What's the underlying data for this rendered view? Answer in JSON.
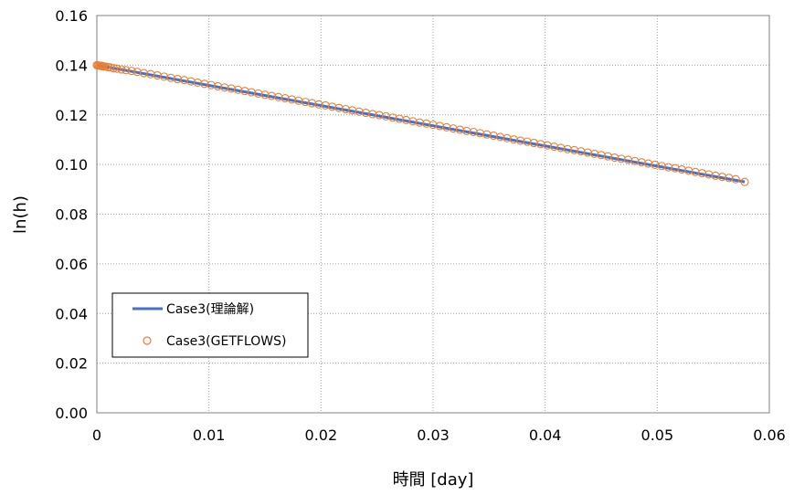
{
  "chart_data": {
    "type": "line",
    "xlabel": "時間 [day]",
    "ylabel": "ln(h)",
    "xlim": [
      0,
      0.06
    ],
    "ylim": [
      0,
      0.16
    ],
    "x_ticks": [
      "0",
      "0.01",
      "0.02",
      "0.03",
      "0.04",
      "0.05",
      "0.06"
    ],
    "y_ticks": [
      "0.00",
      "0.02",
      "0.04",
      "0.06",
      "0.08",
      "0.10",
      "0.12",
      "0.14",
      "0.16"
    ],
    "grid": true,
    "legend_position": "lower-left",
    "series": [
      {
        "name": "Case3(理論解)",
        "style": "line",
        "color": "#4472C4",
        "x": [
          0.0,
          0.0578
        ],
        "y": [
          0.14,
          0.093
        ]
      },
      {
        "name": "Case3(GETFLOWS)",
        "style": "markers",
        "marker": "open-circle",
        "color": "#ED7D31",
        "x": [
          0.0,
          0.0001,
          0.0002,
          0.0003,
          0.0004,
          0.0005,
          0.0006,
          0.0008,
          0.001,
          0.0012,
          0.0015,
          0.0018,
          0.0022,
          0.0026,
          0.0031,
          0.0036,
          0.0042,
          0.0048,
          0.0054,
          0.006,
          0.0066,
          0.0072,
          0.0078,
          0.0084,
          0.009,
          0.0096,
          0.0102,
          0.0108,
          0.0114,
          0.012,
          0.0126,
          0.0132,
          0.0138,
          0.0144,
          0.015,
          0.0156,
          0.0162,
          0.0168,
          0.0174,
          0.018,
          0.0186,
          0.0192,
          0.0198,
          0.0204,
          0.021,
          0.0216,
          0.0222,
          0.0228,
          0.0234,
          0.024,
          0.0246,
          0.0252,
          0.0258,
          0.0264,
          0.027,
          0.0276,
          0.0282,
          0.0288,
          0.0294,
          0.03,
          0.0306,
          0.0312,
          0.0318,
          0.0324,
          0.033,
          0.0336,
          0.0342,
          0.0348,
          0.0354,
          0.036,
          0.0366,
          0.0372,
          0.0378,
          0.0384,
          0.039,
          0.0396,
          0.0402,
          0.0408,
          0.0414,
          0.042,
          0.0426,
          0.0432,
          0.0438,
          0.0444,
          0.045,
          0.0456,
          0.0462,
          0.0468,
          0.0474,
          0.048,
          0.0486,
          0.0492,
          0.0498,
          0.0504,
          0.051,
          0.0516,
          0.0522,
          0.0528,
          0.0534,
          0.054,
          0.0546,
          0.0552,
          0.0558,
          0.0564,
          0.057,
          0.0578
        ],
        "y": [
          0.14,
          0.1399,
          0.1398,
          0.1398,
          0.1397,
          0.1396,
          0.1395,
          0.1394,
          0.1392,
          0.1391,
          0.1388,
          0.1386,
          0.1383,
          0.138,
          0.1377,
          0.1373,
          0.1368,
          0.1364,
          0.1359,
          0.1354,
          0.1349,
          0.1344,
          0.134,
          0.1335,
          0.133,
          0.1325,
          0.132,
          0.1315,
          0.131,
          0.1306,
          0.1301,
          0.1296,
          0.1291,
          0.1286,
          0.1281,
          0.1276,
          0.1272,
          0.1267,
          0.1262,
          0.1257,
          0.1252,
          0.1247,
          0.1242,
          0.1238,
          0.1233,
          0.1228,
          0.1223,
          0.1218,
          0.1213,
          0.1208,
          0.1203,
          0.1199,
          0.1194,
          0.1189,
          0.1184,
          0.1179,
          0.1174,
          0.1169,
          0.1165,
          0.116,
          0.1155,
          0.115,
          0.1145,
          0.114,
          0.1135,
          0.1131,
          0.1126,
          0.1121,
          0.1116,
          0.1111,
          0.1106,
          0.1101,
          0.1096,
          0.1092,
          0.1087,
          0.1082,
          0.1077,
          0.1072,
          0.1067,
          0.1062,
          0.1058,
          0.1053,
          0.1048,
          0.1043,
          0.1038,
          0.1033,
          0.1028,
          0.1023,
          0.1019,
          0.1014,
          0.1009,
          0.1004,
          0.0999,
          0.0994,
          0.0989,
          0.0985,
          0.098,
          0.0975,
          0.097,
          0.0965,
          0.096,
          0.0955,
          0.095,
          0.0946,
          0.0941,
          0.093
        ]
      }
    ]
  }
}
